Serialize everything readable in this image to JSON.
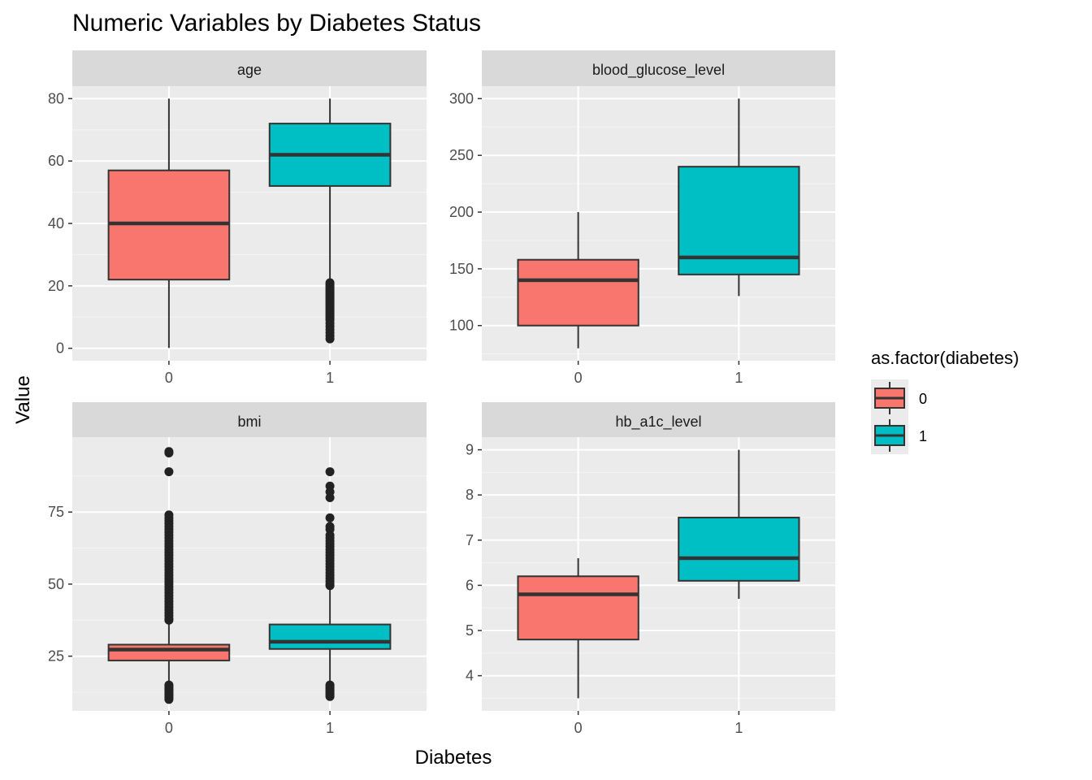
{
  "title": "Numeric Variables by Diabetes Status",
  "xlabel": "Diabetes",
  "ylabel": "Value",
  "legend": {
    "title": "as.factor(diabetes)",
    "position": "right",
    "items": [
      {
        "label": "0",
        "color": "#F8766D"
      },
      {
        "label": "1",
        "color": "#00BFC4"
      }
    ]
  },
  "colors": {
    "panel_background": "#EBEBEB",
    "grid_major": "#FFFFFF",
    "strip_background": "#D9D9D9",
    "box_line": "#333333",
    "median_line": "#333333",
    "group_0": "#F8766D",
    "group_1": "#00BFC4"
  },
  "chart_data": {
    "type": "boxplot",
    "facet_layout": "2x2",
    "categories": [
      "0",
      "1"
    ],
    "panels": [
      {
        "strip": "age",
        "ylim": [
          -4,
          84
        ],
        "yticks": [
          0,
          20,
          40,
          60,
          80
        ],
        "grid": true,
        "boxes": [
          {
            "group": "0",
            "min": 0.1,
            "q1": 22,
            "median": 40,
            "q3": 57,
            "max": 80,
            "outliers": []
          },
          {
            "group": "1",
            "min": 22,
            "q1": 52,
            "median": 62,
            "q3": 72,
            "max": 80,
            "outliers": [
              21,
              20.5,
              20,
              19.5,
              19,
              18.5,
              18,
              17.5,
              17,
              16.5,
              16,
              15.5,
              15,
              14.5,
              14,
              13.5,
              13,
              12.5,
              12,
              11.5,
              11,
              10.5,
              10,
              9.5,
              9,
              8,
              7,
              6,
              5,
              4,
              3
            ]
          }
        ]
      },
      {
        "strip": "blood_glucose_level",
        "ylim": [
          69,
          311
        ],
        "yticks": [
          100,
          150,
          200,
          250,
          300
        ],
        "grid": true,
        "boxes": [
          {
            "group": "0",
            "min": 80,
            "q1": 100,
            "median": 140,
            "q3": 158,
            "max": 200,
            "outliers": []
          },
          {
            "group": "1",
            "min": 126,
            "q1": 145,
            "median": 160,
            "q3": 240,
            "max": 300,
            "outliers": []
          }
        ]
      },
      {
        "strip": "bmi",
        "ylim": [
          6,
          101
        ],
        "yticks": [
          25,
          50,
          75
        ],
        "grid": true,
        "boxes": [
          {
            "group": "0",
            "min": 15.5,
            "q1": 23.5,
            "median": 27.3,
            "q3": 29,
            "max": 37,
            "outliers": [
              10,
              10.5,
              11,
              11.5,
              12,
              12.5,
              13,
              13.5,
              14,
              14.5,
              15,
              37.5,
              38,
              39,
              40,
              41,
              42,
              43,
              44,
              45,
              46,
              47,
              48,
              49,
              50,
              51,
              52,
              53,
              54,
              55,
              56,
              57,
              58,
              59,
              60,
              61,
              62,
              63,
              64,
              65,
              66,
              67,
              68,
              69,
              70,
              71,
              72,
              73,
              74,
              89,
              95.5,
              96
            ]
          },
          {
            "group": "1",
            "min": 15.5,
            "q1": 27.5,
            "median": 30,
            "q3": 36,
            "max": 49,
            "outliers": [
              11,
              11.5,
              12,
              12.5,
              13,
              13.5,
              14,
              14.5,
              15,
              49.5,
              50,
              51,
              52,
              53,
              54,
              55,
              56,
              57,
              58,
              59,
              60,
              61,
              62,
              63,
              64,
              65,
              66,
              67,
              69,
              70,
              73,
              80,
              82,
              84,
              89
            ]
          }
        ]
      },
      {
        "strip": "hb_a1c_level",
        "ylim": [
          3.22,
          9.28
        ],
        "yticks": [
          4,
          5,
          6,
          7,
          8,
          9
        ],
        "grid": true,
        "boxes": [
          {
            "group": "0",
            "min": 3.5,
            "q1": 4.8,
            "median": 5.8,
            "q3": 6.2,
            "max": 6.6,
            "outliers": []
          },
          {
            "group": "1",
            "min": 5.7,
            "q1": 6.1,
            "median": 6.6,
            "q3": 7.5,
            "max": 9,
            "outliers": []
          }
        ]
      }
    ]
  }
}
